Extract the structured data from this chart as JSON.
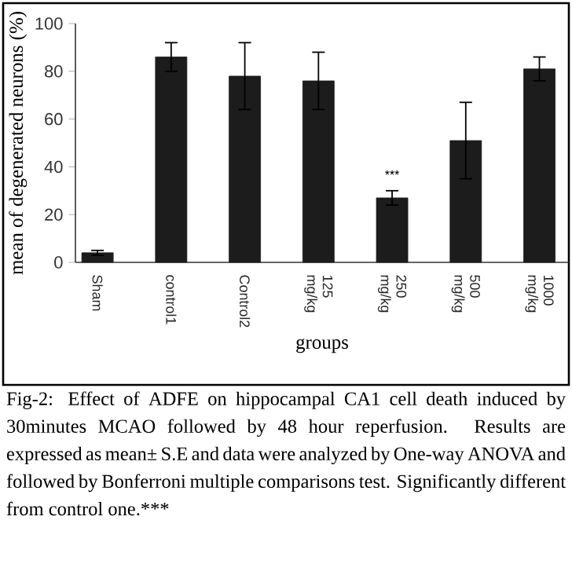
{
  "chart_data": {
    "type": "bar",
    "xlabel": "groups",
    "ylabel": "mean of degenerated neurons (%)",
    "categories": [
      "Sham",
      "control1",
      "Control2",
      "125 mg/kg",
      "250 mg/kg",
      "500 mg/kg",
      "1000 mg/kg"
    ],
    "values": [
      4,
      86,
      78,
      76,
      27,
      51,
      81
    ],
    "errors": [
      1,
      6,
      14,
      12,
      3,
      16,
      5
    ],
    "color": "#1c1c1c",
    "ylim": [
      0,
      100
    ],
    "yticks": [
      0,
      20,
      40,
      60,
      80,
      100
    ],
    "annotations": [
      {
        "text": "***",
        "x": "250 mg/kg",
        "y": 30
      },
      "Fig-2: Effect of ADFE on hippocampal CA1 cell death induced by 30minutes MCAO followed by 48 hour reperfusion. Results are expressed as mean± S.E and data were analyzed by One-way ANOVA and followed by Bonferroni multiple comparisons test. Significantly different from control one.***"
    ]
  }
}
